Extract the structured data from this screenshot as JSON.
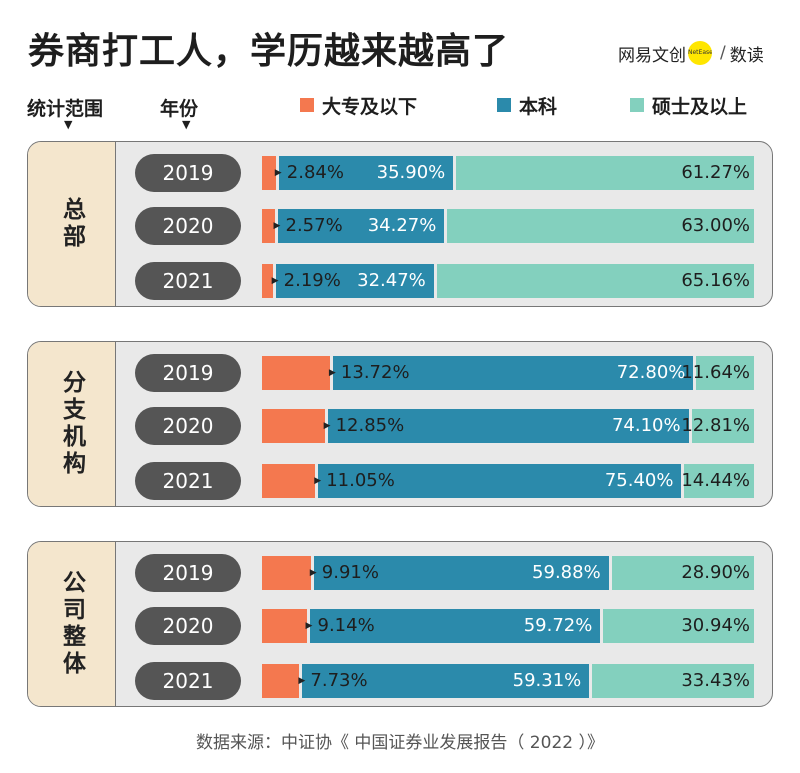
{
  "title": "券商打工人，学历越来越高了",
  "brand": {
    "logo": "网易文创",
    "logo_dot": "NetEase",
    "separator": "/",
    "column": "数读"
  },
  "headers": {
    "scope": "统计范围",
    "year": "年份"
  },
  "legend": [
    {
      "label": "大专及以下",
      "color": "#f4784f"
    },
    {
      "label": "本科",
      "color": "#2b8aab"
    },
    {
      "label": "硕士及以上",
      "color": "#83d0be"
    }
  ],
  "source": "数据来源：中证协《 中国证券业发展报告（ 2022 ）》",
  "chart_data": {
    "type": "bar",
    "stacked": true,
    "orientation": "horizontal",
    "series_names": [
      "大专及以下",
      "本科",
      "硕士及以上"
    ],
    "groups": [
      {
        "label": "总部",
        "rows": [
          {
            "year": "2019",
            "values": [
              2.84,
              35.9,
              61.27
            ],
            "labels": [
              "2.84%",
              "35.90%",
              "61.27%"
            ]
          },
          {
            "year": "2020",
            "values": [
              2.57,
              34.27,
              63.0
            ],
            "labels": [
              "2.57%",
              "34.27%",
              "63.00%"
            ]
          },
          {
            "year": "2021",
            "values": [
              2.19,
              32.47,
              65.16
            ],
            "labels": [
              "2.19%",
              "32.47%",
              "65.16%"
            ]
          }
        ]
      },
      {
        "label": "分支机构",
        "rows": [
          {
            "year": "2019",
            "values": [
              13.72,
              72.8,
              11.64
            ],
            "labels": [
              "13.72%",
              "72.80%",
              "11.64%"
            ]
          },
          {
            "year": "2020",
            "values": [
              12.85,
              74.1,
              12.81
            ],
            "labels": [
              "12.85%",
              "74.10%",
              "12.81%"
            ]
          },
          {
            "year": "2021",
            "values": [
              11.05,
              75.4,
              14.44
            ],
            "labels": [
              "11.05%",
              "75.40%",
              "14.44%"
            ]
          }
        ]
      },
      {
        "label": "公司整体",
        "rows": [
          {
            "year": "2019",
            "values": [
              9.91,
              59.88,
              28.9
            ],
            "labels": [
              "9.91%",
              "59.88%",
              "28.90%"
            ]
          },
          {
            "year": "2020",
            "values": [
              9.14,
              59.72,
              30.94
            ],
            "labels": [
              "9.14%",
              "59.72%",
              "30.94%"
            ]
          },
          {
            "year": "2021",
            "values": [
              7.73,
              59.31,
              33.43
            ],
            "labels": [
              "7.73%",
              "59.31%",
              "33.43%"
            ]
          }
        ]
      }
    ]
  }
}
